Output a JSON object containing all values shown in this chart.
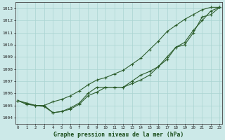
{
  "title": "Graphe pression niveau de la mer (hPa)",
  "xlabel_hours": [
    0,
    1,
    2,
    3,
    4,
    5,
    6,
    7,
    8,
    9,
    10,
    11,
    12,
    13,
    14,
    15,
    16,
    17,
    18,
    19,
    20,
    21,
    22,
    23
  ],
  "ylim": [
    1003.5,
    1013.5
  ],
  "yticks": [
    1004,
    1005,
    1006,
    1007,
    1008,
    1009,
    1010,
    1011,
    1012,
    1013
  ],
  "background_color": "#cce9e8",
  "grid_color": "#aad4d2",
  "line_color": "#2d5e2d",
  "line1": [
    1005.4,
    1005.1,
    1005.0,
    1004.9,
    1004.4,
    1004.5,
    1004.7,
    1005.1,
    1005.8,
    1006.1,
    1006.5,
    1006.5,
    1006.5,
    1006.8,
    1007.1,
    1007.5,
    1008.2,
    1009.0,
    1009.8,
    1010.0,
    1011.0,
    1012.3,
    1012.5,
    1013.1
  ],
  "line2": [
    1005.4,
    1005.1,
    1005.0,
    1005.0,
    1004.4,
    1004.5,
    1004.8,
    1005.2,
    1006.0,
    1006.5,
    1006.5,
    1006.5,
    1006.5,
    1007.0,
    1007.5,
    1007.8,
    1008.2,
    1008.8,
    1009.8,
    1010.2,
    1011.2,
    1012.0,
    1012.8,
    1013.1
  ],
  "line3": [
    1005.4,
    1005.2,
    1005.0,
    1005.0,
    1005.3,
    1005.5,
    1005.8,
    1006.2,
    1006.7,
    1007.1,
    1007.3,
    1007.6,
    1007.9,
    1008.4,
    1008.9,
    1009.6,
    1010.3,
    1011.1,
    1011.6,
    1012.1,
    1012.5,
    1012.9,
    1013.1,
    1013.1
  ],
  "figwidth": 3.2,
  "figheight": 2.0,
  "dpi": 100
}
